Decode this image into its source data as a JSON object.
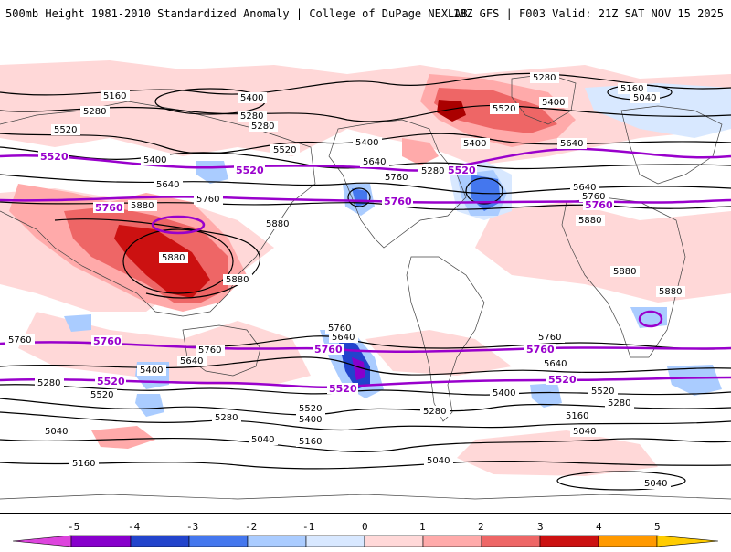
{
  "header": {
    "title": "500mb Height 1981-2010 Standardized Anomaly | College of DuPage NEXLAB",
    "run_info": "18Z GFS | F003 Valid: 21Z SAT NOV 15 2025"
  },
  "colors": {
    "neg5": "#dd44dd",
    "neg4": "#8800cc",
    "neg3": "#2244cc",
    "neg2": "#4477ee",
    "neg1": "#aaccff",
    "neg05": "#d8e8ff",
    "zero": "#ffffff",
    "pos05": "#ffd8d8",
    "pos1": "#ffaaaa",
    "pos2": "#ee6666",
    "pos3": "#cc1111",
    "pos4": "#aa0000",
    "pos5": "#ff9900",
    "highlight": "#9900cc"
  },
  "contour_labels": {
    "5160": "5160",
    "5280": "5280",
    "5400": "5400",
    "5520": "5520",
    "5640": "5640",
    "5760": "5760",
    "5880": "5880",
    "5040": "5040"
  },
  "highlight_labels": {
    "l5520": "5520",
    "l5760": "5760"
  },
  "colorbar": {
    "ticks": [
      "-5",
      "-4",
      "-3",
      "-2",
      "-1",
      "0",
      "1",
      "2",
      "3",
      "4",
      "5"
    ]
  }
}
